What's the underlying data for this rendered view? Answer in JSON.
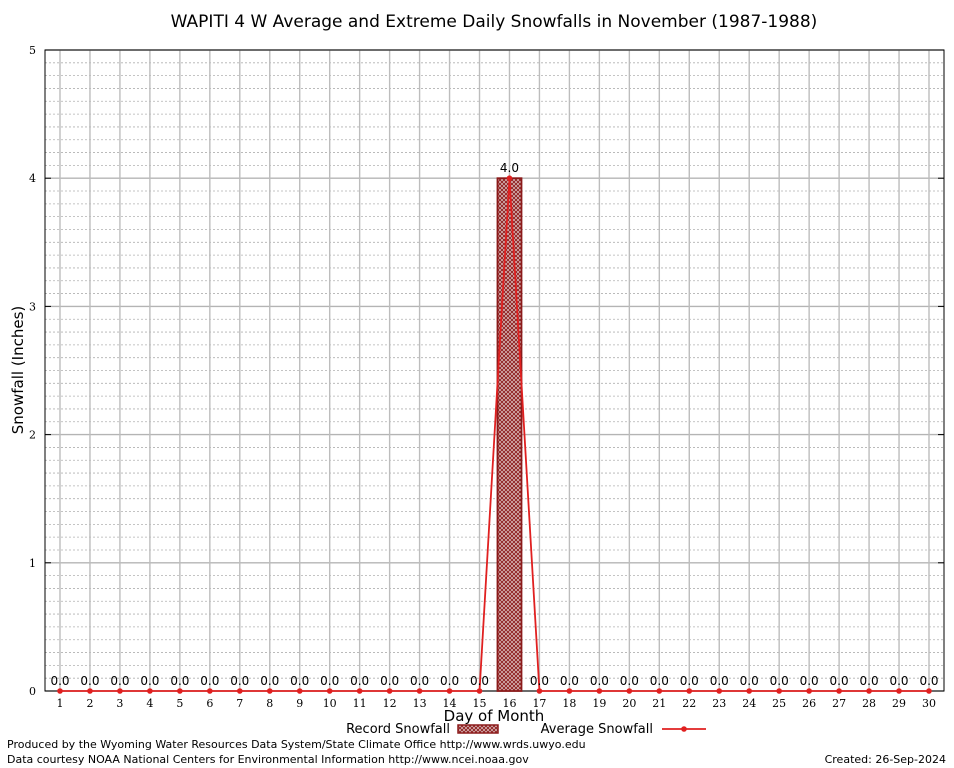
{
  "chart_data": {
    "type": "bar",
    "title": "WAPITI 4 W Average and Extreme Daily Snowfalls in November (1987-1988)",
    "xlabel": "Day of Month",
    "ylabel": "Snowfall (Inches)",
    "ylim": [
      0,
      5
    ],
    "yticks": [
      "0",
      "1",
      "2",
      "3",
      "4",
      "5"
    ],
    "grid": true,
    "legend_position": "bottom",
    "categories": [
      "1",
      "2",
      "3",
      "4",
      "5",
      "6",
      "7",
      "8",
      "9",
      "10",
      "11",
      "12",
      "13",
      "14",
      "15",
      "16",
      "17",
      "18",
      "19",
      "20",
      "21",
      "22",
      "23",
      "24",
      "25",
      "26",
      "27",
      "28",
      "29",
      "30"
    ],
    "series": [
      {
        "name": "Record Snowfall",
        "type": "bar",
        "color": "#8b1a1a",
        "values": [
          0,
          0,
          0,
          0,
          0,
          0,
          0,
          0,
          0,
          0,
          0,
          0,
          0,
          0,
          0,
          4.0,
          0,
          0,
          0,
          0,
          0,
          0,
          0,
          0,
          0,
          0,
          0,
          0,
          0,
          0
        ]
      },
      {
        "name": "Average Snowfall",
        "type": "line",
        "color": "#e02020",
        "values": [
          0,
          0,
          0,
          0,
          0,
          0,
          0,
          0,
          0,
          0,
          0,
          0,
          0,
          0,
          0,
          4.0,
          0,
          0,
          0,
          0,
          0,
          0,
          0,
          0,
          0,
          0,
          0,
          0,
          0,
          0
        ]
      }
    ],
    "data_labels": [
      "0.0",
      "0.0",
      "0.0",
      "0.0",
      "0.0",
      "0.0",
      "0.0",
      "0.0",
      "0.0",
      "0.0",
      "0.0",
      "0.0",
      "0.0",
      "0.0",
      "0.0",
      "4.0",
      "0.0",
      "0.0",
      "0.0",
      "0.0",
      "0.0",
      "0.0",
      "0.0",
      "0.0",
      "0.0",
      "0.0",
      "0.0",
      "0.0",
      "0.0",
      "0.0"
    ]
  },
  "footer": {
    "produced_by": "Produced by the Wyoming Water Resources Data System/State Climate Office http://www.wrds.uwyo.edu",
    "courtesy": "Data courtesy NOAA National Centers for Environmental Information http://www.ncei.noaa.gov",
    "created": "Created:  26-Sep-2024"
  }
}
